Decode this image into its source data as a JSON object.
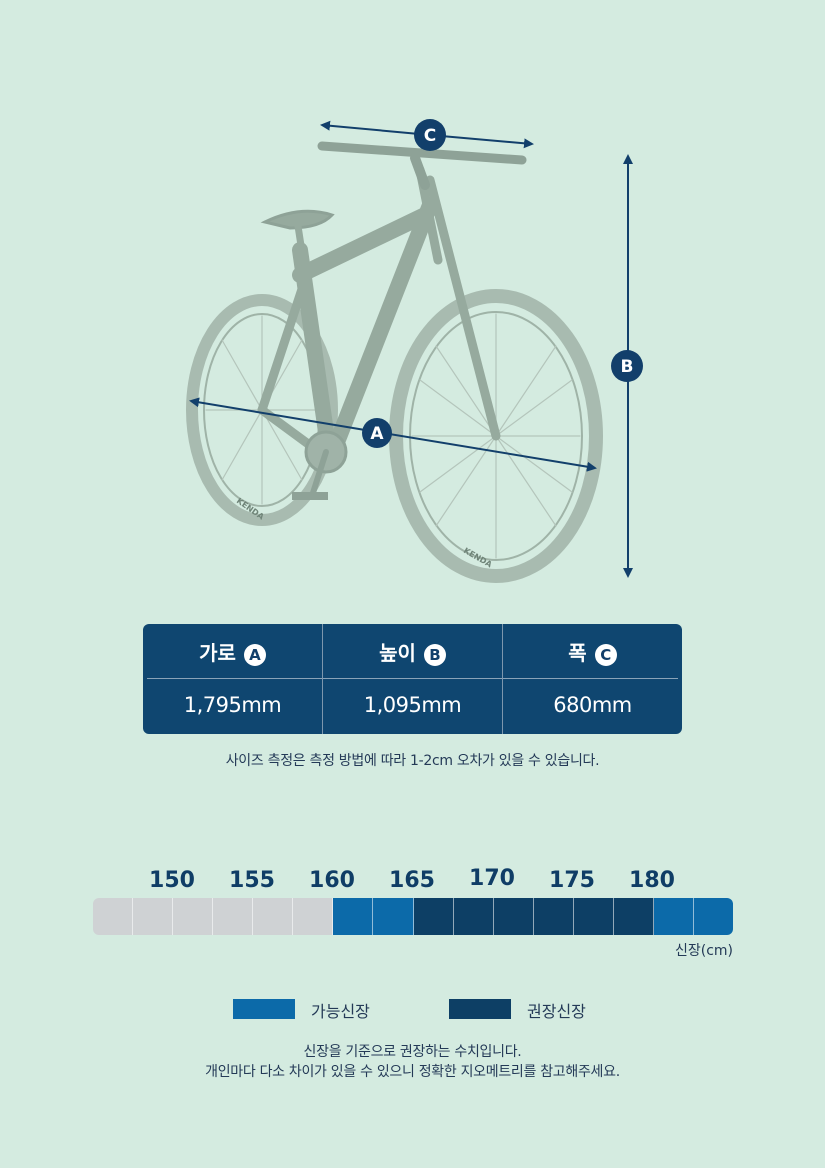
{
  "diagram": {
    "labels": {
      "a": "A",
      "b": "B",
      "c": "C"
    },
    "tire_brand": "KENDA"
  },
  "spec_table": {
    "columns": [
      {
        "label": "가로",
        "badge": "A",
        "value": "1,795mm"
      },
      {
        "label": "높이",
        "badge": "B",
        "value": "1,095mm"
      },
      {
        "label": "폭",
        "badge": "C",
        "value": "680mm"
      }
    ]
  },
  "size_note": "사이즈 측정은 측정 방법에 따라 1-2cm 오차가 있을 수 있습니다.",
  "height_chart": {
    "ticks": [
      "150",
      "155",
      "160",
      "165",
      "170",
      "175",
      "180"
    ],
    "unit": "신장(cm)",
    "segments": [
      "gray",
      "gray",
      "gray",
      "gray",
      "gray",
      "gray",
      "light",
      "light",
      "dark",
      "dark",
      "dark",
      "dark",
      "dark",
      "dark",
      "light",
      "light"
    ],
    "legend": {
      "possible": "가능신장",
      "recommended": "권장신장"
    },
    "colors": {
      "possible": "#0c6aa9",
      "recommended": "#0d3f65",
      "inactive": "#cfd2d4"
    }
  },
  "footer_note": {
    "line1": "신장을 기준으로 권장하는 수치입니다.",
    "line2": "개인마다 다소 차이가 있을 수 있으니 정확한 지오메트리를 참고해주세요."
  }
}
